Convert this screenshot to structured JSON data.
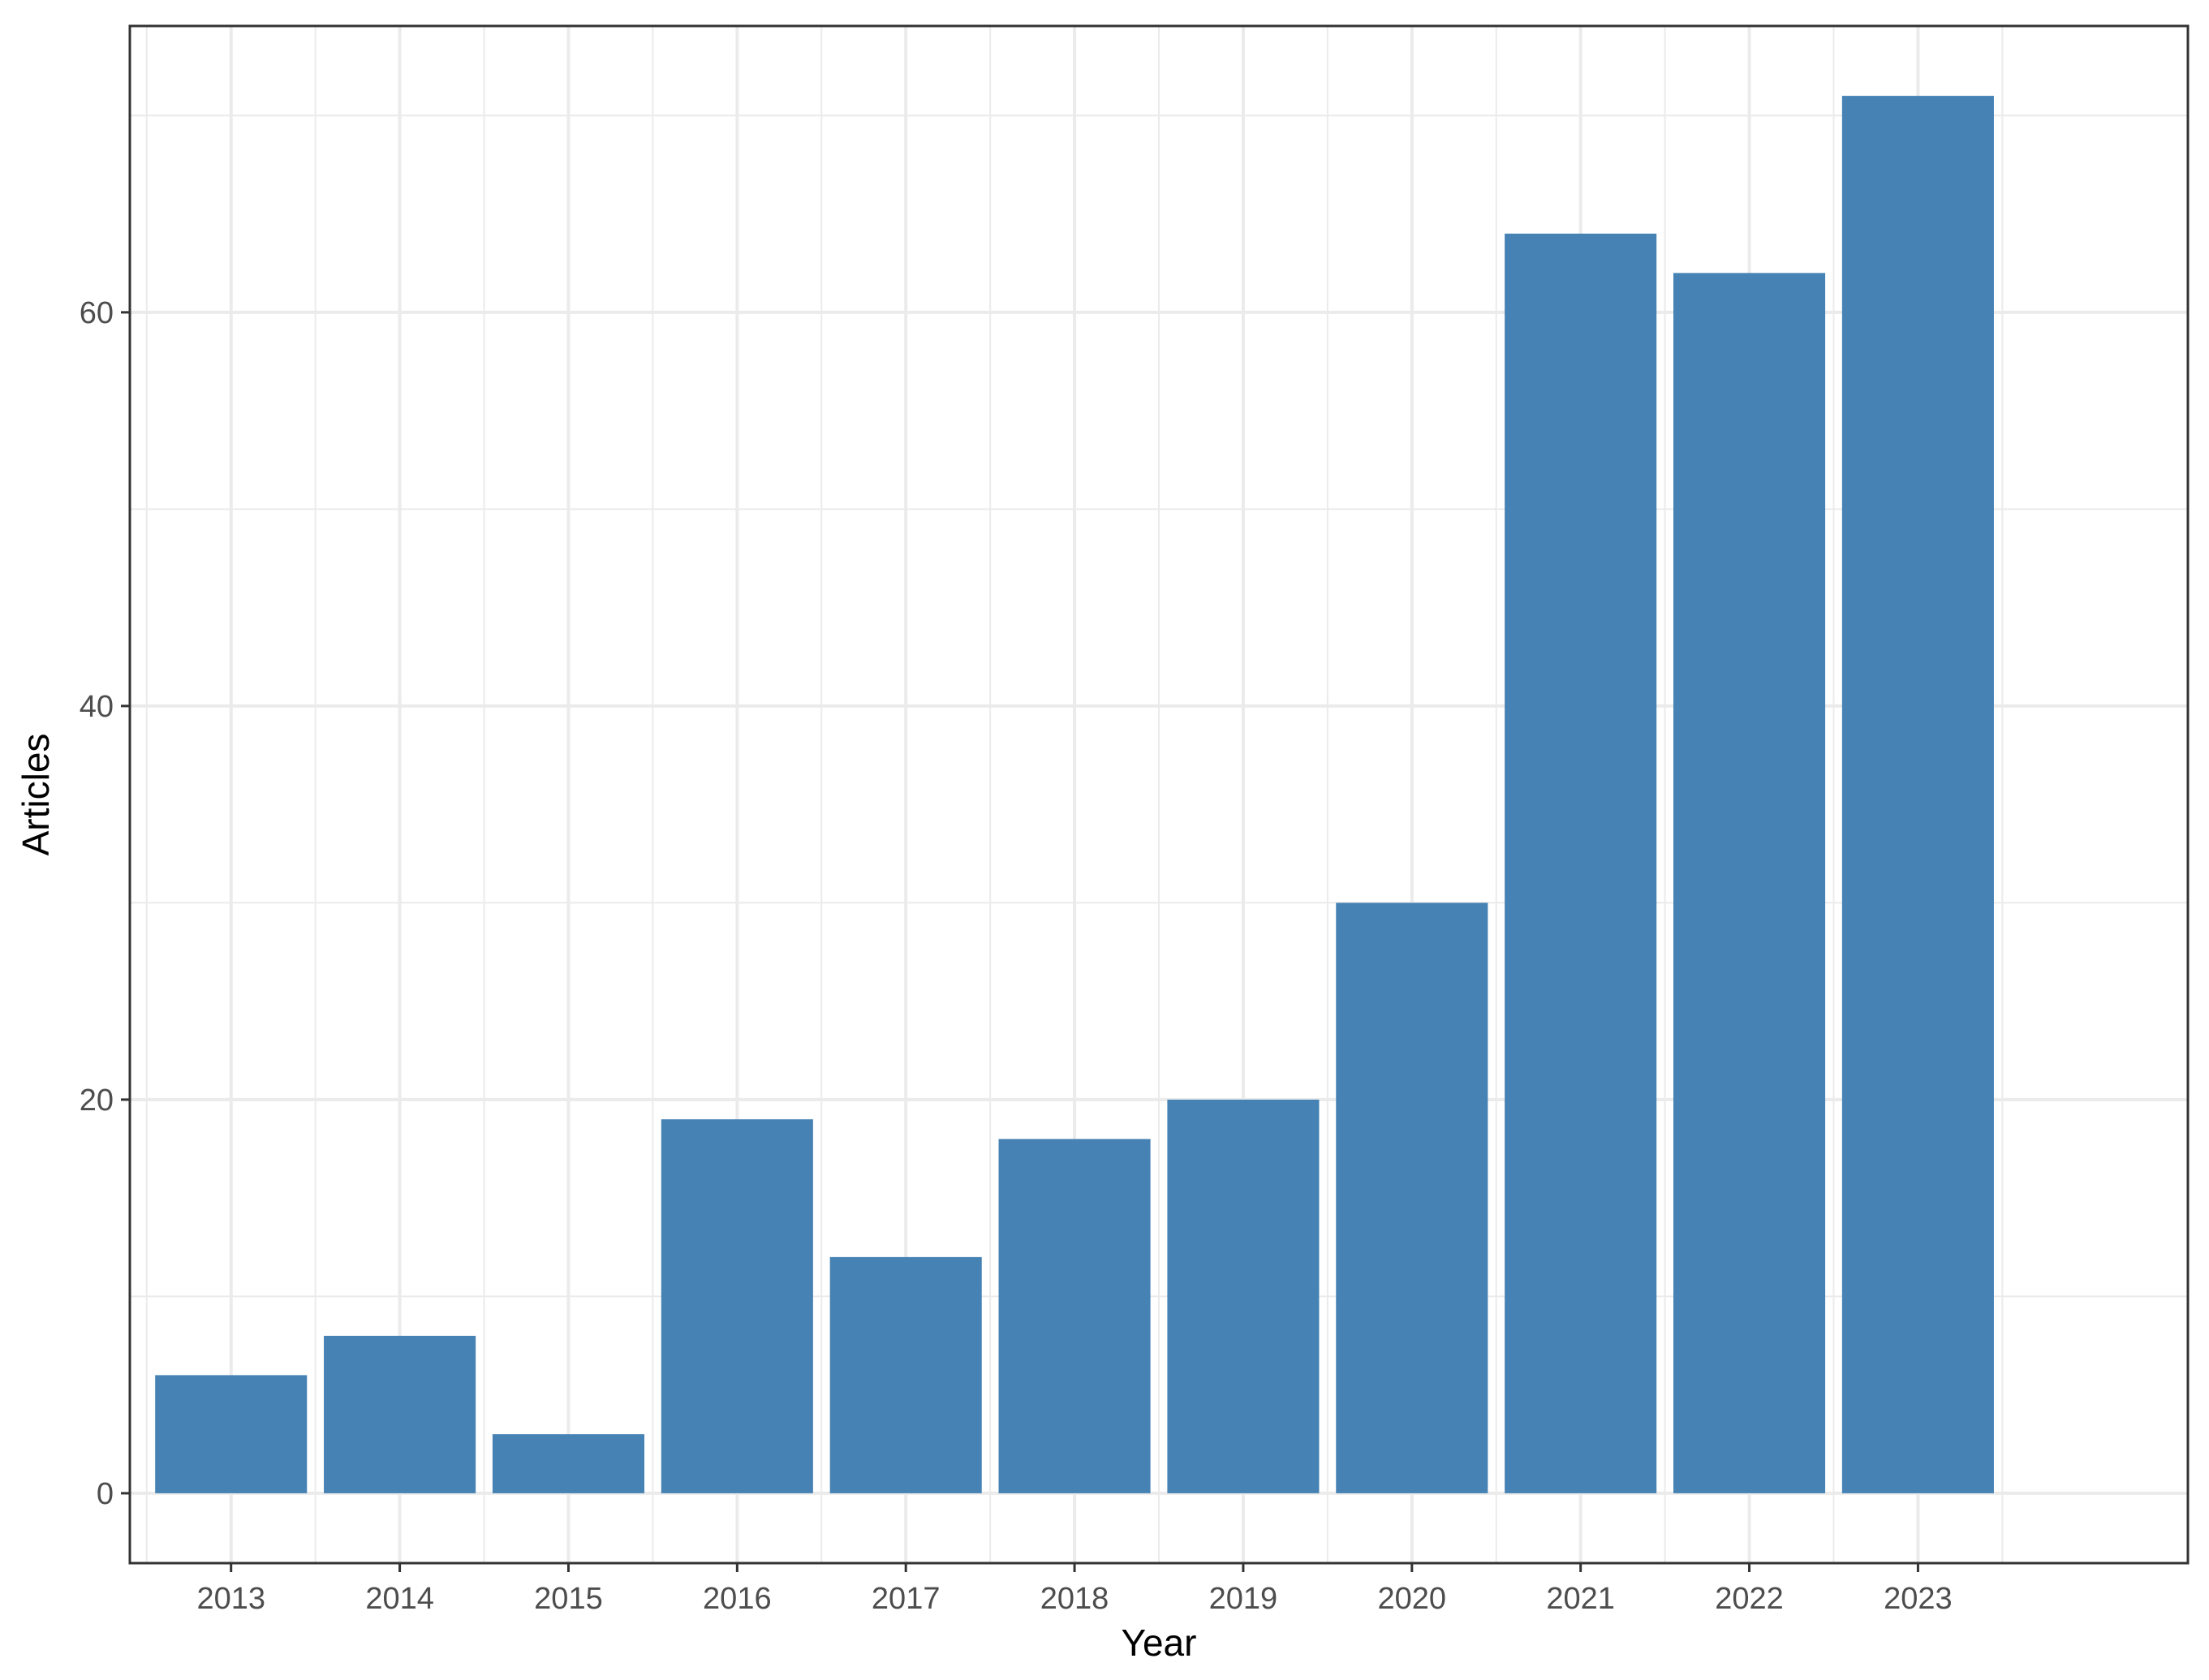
{
  "chart_data": {
    "type": "bar",
    "categories": [
      "2013",
      "2014",
      "2015",
      "2016",
      "2017",
      "2018",
      "2019",
      "2020",
      "2021",
      "2022",
      "2023"
    ],
    "values": [
      6,
      8,
      3,
      19,
      12,
      18,
      20,
      30,
      64,
      62,
      71
    ],
    "title": "",
    "xlabel": "Year",
    "ylabel": "Articles",
    "ylim": [
      -3.55,
      74.55
    ],
    "yticks": [
      0,
      20,
      40,
      60
    ],
    "grid": true,
    "bar_color": "#4682b4",
    "grid_color": "#ebebeb",
    "panel_border_color": "#333333"
  }
}
